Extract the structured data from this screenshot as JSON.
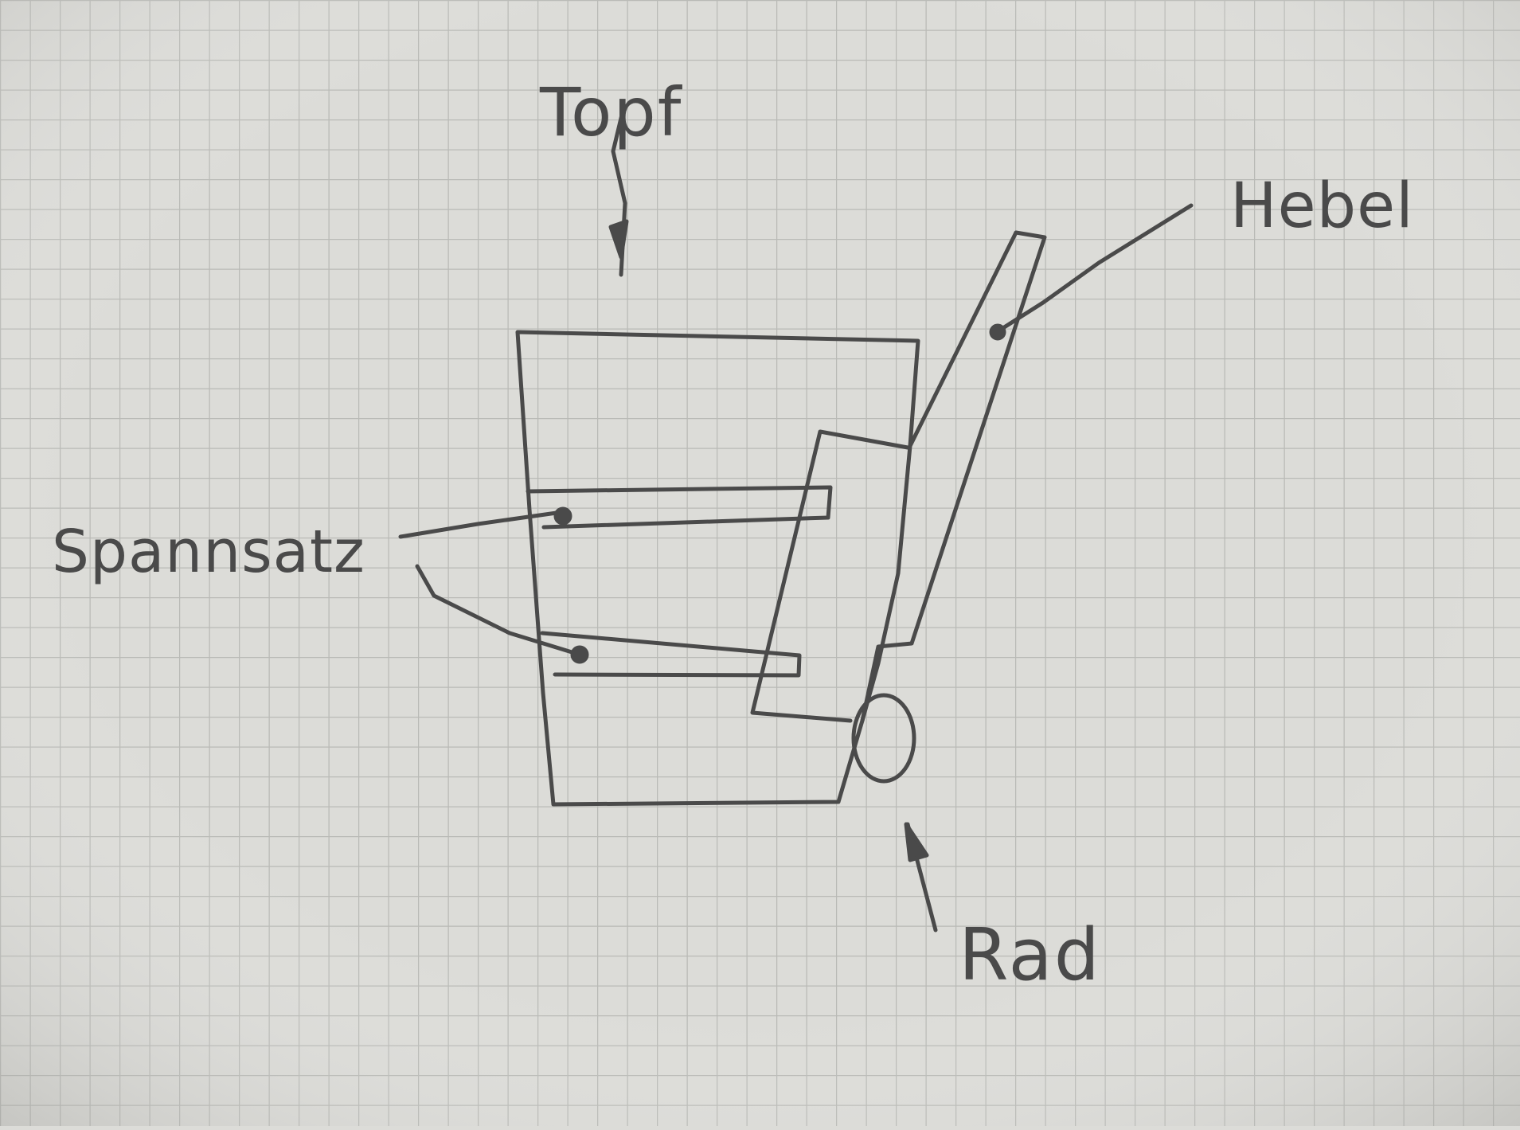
{
  "labels": {
    "topf": "Topf",
    "hebel": "Hebel",
    "spannsatz": "Spannsatz",
    "rad": "Rad"
  },
  "colors": {
    "paper": "#dcdcd8",
    "grid": "#b9bab6",
    "ink": "#4a4a4a"
  }
}
